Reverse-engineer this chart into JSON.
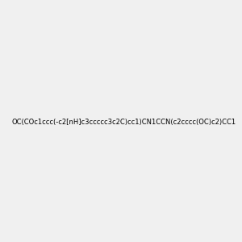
{
  "smiles": "OC(COc1ccc(-c2[nH]c3ccccc3c2C)cc1)CN1CCN(c2cccc(OC)c2)CC1",
  "image_size": 300,
  "background_color": "#f0f0f0",
  "bond_color": "#000000",
  "atom_colors": {
    "N": "#0000ff",
    "O": "#ff0000",
    "H_on_N": "#0000ff",
    "H_on_O": "#808080"
  }
}
